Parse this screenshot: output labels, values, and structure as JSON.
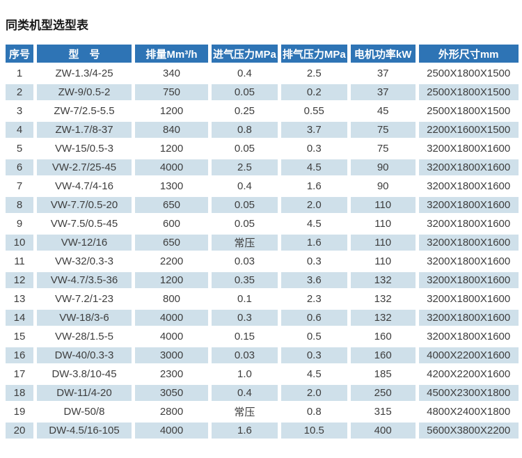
{
  "page": {
    "title": "同类机型选型表"
  },
  "colors": {
    "header_bg": "#2e74b5",
    "header_text": "#ffffff",
    "row_alt_bg": "#cfe0ea",
    "row_text": "#3d3d3d",
    "title_text": "#1a1a1a"
  },
  "table": {
    "columns": [
      "序号",
      "型　号",
      "排量Mm³/h",
      "进气压力MPa",
      "排气压力MPa",
      "电机功率kW",
      "外形尺寸mm"
    ],
    "rows": [
      [
        "1",
        "ZW-1.3/4-25",
        "340",
        "0.4",
        "2.5",
        "37",
        "2500X1800X1500"
      ],
      [
        "2",
        "ZW-9/0.5-2",
        "750",
        "0.05",
        "0.2",
        "37",
        "2500X1800X1500"
      ],
      [
        "3",
        "ZW-7/2.5-5.5",
        "1200",
        "0.25",
        "0.55",
        "45",
        "2500X1800X1500"
      ],
      [
        "4",
        "ZW-1.7/8-37",
        "840",
        "0.8",
        "3.7",
        "75",
        "2200X1600X1500"
      ],
      [
        "5",
        "VW-15/0.5-3",
        "1200",
        "0.05",
        "0.3",
        "75",
        "3200X1800X1600"
      ],
      [
        "6",
        "VW-2.7/25-45",
        "4000",
        "2.5",
        "4.5",
        "90",
        "3200X1800X1600"
      ],
      [
        "7",
        "VW-4.7/4-16",
        "1300",
        "0.4",
        "1.6",
        "90",
        "3200X1800X1600"
      ],
      [
        "8",
        "VW-7.7/0.5-20",
        "650",
        "0.05",
        "2.0",
        "110",
        "3200X1800X1600"
      ],
      [
        "9",
        "VW-7.5/0.5-45",
        "600",
        "0.05",
        "4.5",
        "110",
        "3200X1800X1600"
      ],
      [
        "10",
        "VW-12/16",
        "650",
        "常压",
        "1.6",
        "110",
        "3200X1800X1600"
      ],
      [
        "11",
        "VW-32/0.3-3",
        "2200",
        "0.03",
        "0.3",
        "110",
        "3200X1800X1600"
      ],
      [
        "12",
        "VW-4.7/3.5-36",
        "1200",
        "0.35",
        "3.6",
        "132",
        "3200X1800X1600"
      ],
      [
        "13",
        "VW-7.2/1-23",
        "800",
        "0.1",
        "2.3",
        "132",
        "3200X1800X1600"
      ],
      [
        "14",
        "VW-18/3-6",
        "4000",
        "0.3",
        "0.6",
        "132",
        "3200X1800X1600"
      ],
      [
        "15",
        "VW-28/1.5-5",
        "4000",
        "0.15",
        "0.5",
        "160",
        "3200X1800X1600"
      ],
      [
        "16",
        "DW-40/0.3-3",
        "3000",
        "0.03",
        "0.3",
        "160",
        "4000X2200X1600"
      ],
      [
        "17",
        "DW-3.8/10-45",
        "2300",
        "1.0",
        "4.5",
        "185",
        "4200X2200X1600"
      ],
      [
        "18",
        "DW-11/4-20",
        "3050",
        "0.4",
        "2.0",
        "250",
        "4500X2300X1800"
      ],
      [
        "19",
        "DW-50/8",
        "2800",
        "常压",
        "0.8",
        "315",
        "4800X2400X1800"
      ],
      [
        "20",
        "DW-4.5/16-105",
        "4000",
        "1.6",
        "10.5",
        "400",
        "5600X3800X2200"
      ]
    ]
  }
}
